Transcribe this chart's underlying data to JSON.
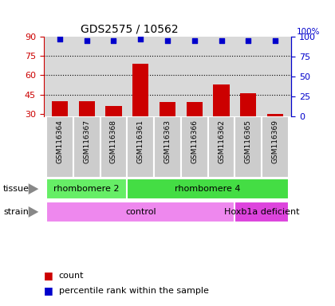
{
  "title": "GDS2575 / 10562",
  "samples": [
    "GSM116364",
    "GSM116367",
    "GSM116368",
    "GSM116361",
    "GSM116363",
    "GSM116366",
    "GSM116362",
    "GSM116365",
    "GSM116369"
  ],
  "counts": [
    40,
    40,
    36,
    69,
    39,
    39,
    53,
    46,
    30
  ],
  "percentile_ranks": [
    97,
    95,
    95,
    97,
    95,
    95,
    95,
    95,
    95
  ],
  "ylim_left": [
    28,
    90
  ],
  "ylim_right": [
    0,
    100
  ],
  "yticks_left": [
    30,
    45,
    60,
    75,
    90
  ],
  "yticks_right": [
    0,
    25,
    50,
    75,
    100
  ],
  "bar_color": "#cc0000",
  "dot_color": "#0000cc",
  "tissue_groups": [
    {
      "label": "rhombomere 2",
      "start": 0,
      "end": 3,
      "color": "#66ee66"
    },
    {
      "label": "rhombomere 4",
      "start": 3,
      "end": 9,
      "color": "#44dd44"
    }
  ],
  "strain_groups": [
    {
      "label": "control",
      "start": 0,
      "end": 7,
      "color": "#ee88ee"
    },
    {
      "label": "Hoxb1a deficient",
      "start": 7,
      "end": 9,
      "color": "#dd44dd"
    }
  ],
  "legend_items": [
    {
      "label": "count",
      "color": "#cc0000"
    },
    {
      "label": "percentile rank within the sample",
      "color": "#0000cc"
    }
  ],
  "title_color": "#000000",
  "left_axis_color": "#cc0000",
  "right_axis_color": "#0000cc",
  "background_color": "#ffffff",
  "plot_bg_color": "#d9d9d9",
  "sample_box_color": "#cccccc"
}
